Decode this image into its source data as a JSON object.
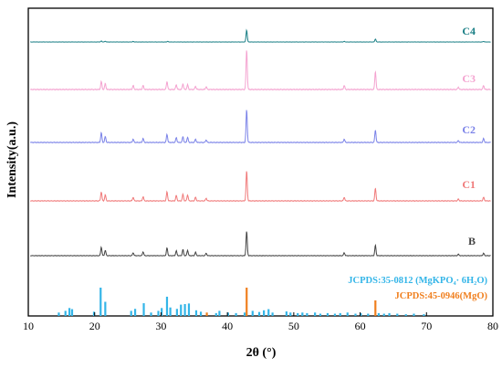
{
  "chart_data": {
    "type": "line",
    "xlabel": "2θ (°)",
    "ylabel": "Intensity(a.u.)",
    "xlim": [
      10,
      80
    ],
    "x_ticks": [
      10,
      20,
      30,
      40,
      50,
      60,
      70,
      80
    ],
    "y_ticks_shown": false,
    "grid": false,
    "legend": "none (traces labelled at right end)",
    "series": [
      {
        "name": "C4",
        "color": "#1a7f86",
        "peaks": [
          [
            21.0,
            0.08
          ],
          [
            21.6,
            0.06
          ],
          [
            25.8,
            0.04
          ],
          [
            31.0,
            0.05
          ],
          [
            42.9,
            1.0
          ],
          [
            57.6,
            0.05
          ],
          [
            62.3,
            0.25
          ],
          [
            78.6,
            0.05
          ]
        ]
      },
      {
        "name": "C3",
        "color": "#f4a3d0",
        "peaks": [
          [
            21.0,
            0.2
          ],
          [
            21.6,
            0.15
          ],
          [
            25.8,
            0.1
          ],
          [
            27.3,
            0.1
          ],
          [
            30.9,
            0.2
          ],
          [
            32.3,
            0.12
          ],
          [
            33.3,
            0.14
          ],
          [
            34.0,
            0.12
          ],
          [
            35.2,
            0.08
          ],
          [
            36.8,
            0.07
          ],
          [
            42.9,
            1.0
          ],
          [
            57.6,
            0.1
          ],
          [
            62.3,
            0.45
          ],
          [
            74.8,
            0.06
          ],
          [
            78.6,
            0.1
          ]
        ]
      },
      {
        "name": "C2",
        "color": "#7b83e8",
        "peaks": [
          [
            21.0,
            0.3
          ],
          [
            21.6,
            0.18
          ],
          [
            25.8,
            0.1
          ],
          [
            27.3,
            0.12
          ],
          [
            30.9,
            0.25
          ],
          [
            32.3,
            0.15
          ],
          [
            33.3,
            0.18
          ],
          [
            34.0,
            0.16
          ],
          [
            35.2,
            0.1
          ],
          [
            36.8,
            0.08
          ],
          [
            42.9,
            1.0
          ],
          [
            57.6,
            0.1
          ],
          [
            62.3,
            0.38
          ],
          [
            74.8,
            0.06
          ],
          [
            78.6,
            0.12
          ]
        ]
      },
      {
        "name": "C1",
        "color": "#f07a7a",
        "peaks": [
          [
            21.0,
            0.3
          ],
          [
            21.6,
            0.2
          ],
          [
            25.8,
            0.12
          ],
          [
            27.3,
            0.14
          ],
          [
            30.9,
            0.3
          ],
          [
            32.3,
            0.18
          ],
          [
            33.3,
            0.22
          ],
          [
            34.0,
            0.2
          ],
          [
            35.2,
            0.12
          ],
          [
            36.8,
            0.09
          ],
          [
            42.9,
            1.0
          ],
          [
            57.6,
            0.12
          ],
          [
            62.3,
            0.42
          ],
          [
            74.8,
            0.06
          ],
          [
            78.6,
            0.12
          ]
        ]
      },
      {
        "name": "B",
        "color": "#444444",
        "peaks": [
          [
            21.0,
            0.35
          ],
          [
            21.6,
            0.22
          ],
          [
            25.8,
            0.12
          ],
          [
            27.3,
            0.16
          ],
          [
            30.9,
            0.32
          ],
          [
            32.3,
            0.2
          ],
          [
            33.3,
            0.25
          ],
          [
            34.0,
            0.22
          ],
          [
            35.2,
            0.14
          ],
          [
            36.8,
            0.1
          ],
          [
            42.9,
            1.0
          ],
          [
            57.6,
            0.12
          ],
          [
            62.3,
            0.42
          ],
          [
            74.8,
            0.06
          ],
          [
            78.6,
            0.1
          ]
        ]
      }
    ],
    "reference_patterns": [
      {
        "name": "JCPDS:35-0812 (MgKPO₄· 6H₂O)",
        "color": "#33b5e8",
        "sticks": [
          [
            14.6,
            0.12
          ],
          [
            15.6,
            0.18
          ],
          [
            16.2,
            0.28
          ],
          [
            16.6,
            0.24
          ],
          [
            19.9,
            0.15
          ],
          [
            20.9,
            1.0
          ],
          [
            21.6,
            0.5
          ],
          [
            25.5,
            0.18
          ],
          [
            26.1,
            0.25
          ],
          [
            27.4,
            0.45
          ],
          [
            28.5,
            0.12
          ],
          [
            29.6,
            0.18
          ],
          [
            30.1,
            0.28
          ],
          [
            30.9,
            0.68
          ],
          [
            31.4,
            0.3
          ],
          [
            32.4,
            0.25
          ],
          [
            33.0,
            0.4
          ],
          [
            33.6,
            0.42
          ],
          [
            34.2,
            0.44
          ],
          [
            35.3,
            0.2
          ],
          [
            36.0,
            0.15
          ],
          [
            38.3,
            0.1
          ],
          [
            38.8,
            0.18
          ],
          [
            40.1,
            0.12
          ],
          [
            41.3,
            0.1
          ],
          [
            42.6,
            0.12
          ],
          [
            43.8,
            0.18
          ],
          [
            44.8,
            0.14
          ],
          [
            45.5,
            0.2
          ],
          [
            46.2,
            0.24
          ],
          [
            46.8,
            0.12
          ],
          [
            48.9,
            0.16
          ],
          [
            49.5,
            0.12
          ],
          [
            50.6,
            0.1
          ],
          [
            51.3,
            0.12
          ],
          [
            52.0,
            0.1
          ],
          [
            53.2,
            0.12
          ],
          [
            54.0,
            0.08
          ],
          [
            55.1,
            0.1
          ],
          [
            56.2,
            0.08
          ],
          [
            57.0,
            0.1
          ],
          [
            58.1,
            0.12
          ],
          [
            59.3,
            0.08
          ],
          [
            60.1,
            0.1
          ],
          [
            61.2,
            0.08
          ],
          [
            62.8,
            0.1
          ],
          [
            63.6,
            0.08
          ],
          [
            64.4,
            0.1
          ],
          [
            65.6,
            0.08
          ],
          [
            66.9,
            0.06
          ],
          [
            68.1,
            0.08
          ],
          [
            69.6,
            0.06
          ]
        ]
      },
      {
        "name": "JCPDS:45-0946(MgO)",
        "color": "#f07f1e",
        "sticks": [
          [
            36.9,
            0.12
          ],
          [
            42.9,
            1.0
          ],
          [
            62.3,
            0.55
          ]
        ]
      }
    ]
  }
}
